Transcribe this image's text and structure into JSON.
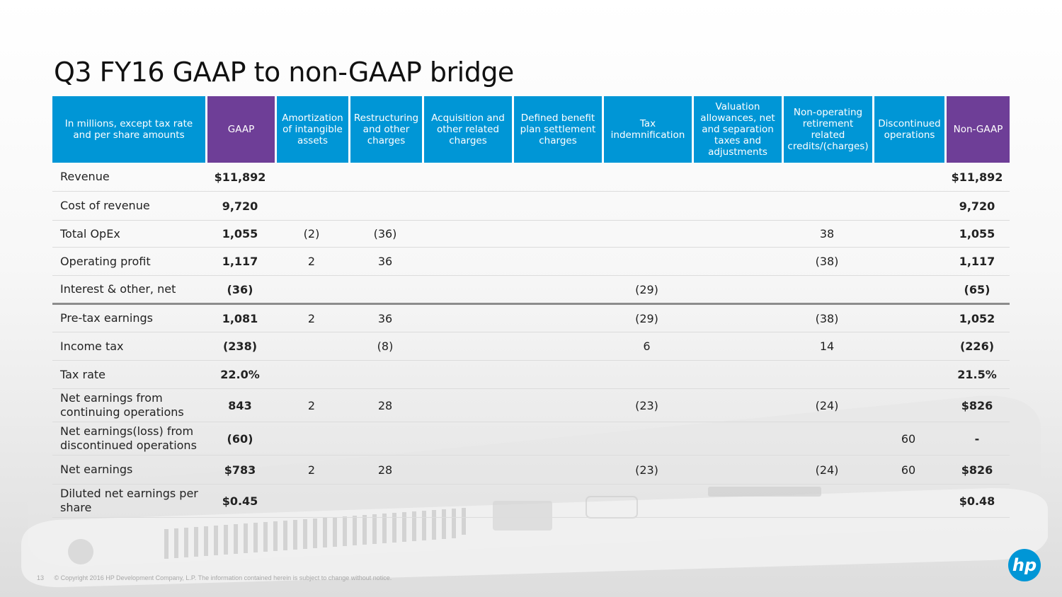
{
  "slide": {
    "title": "Q3 FY16 GAAP to non-GAAP bridge",
    "page_number": "13",
    "copyright": "© Copyright 2016 HP Development Company, L.P. The information contained herein is subject to change without notice.",
    "logo_text": "hp"
  },
  "colors": {
    "blue": "#0096d6",
    "purple": "#6e3e97"
  },
  "table": {
    "headers": [
      "In millions, except tax rate and per share amounts",
      "GAAP",
      "Amortization of intangible assets",
      "Restructuring and other charges",
      "Acquisition and other related charges",
      "Defined benefit plan settlement charges",
      "Tax indemnification",
      "Valuation allowances, net and separation taxes and adjustments",
      "Non-operating retirement related credits/(charges)",
      "Discontinued operations",
      "Non-GAAP"
    ],
    "rows": [
      {
        "label": "Revenue",
        "cells": [
          "$11,892",
          "",
          "",
          "",
          "",
          "",
          "",
          "",
          "",
          "$11,892"
        ]
      },
      {
        "label": "Cost of revenue",
        "cells": [
          "9,720",
          "",
          "",
          "",
          "",
          "",
          "",
          "",
          "",
          "9,720"
        ]
      },
      {
        "label": "Total OpEx",
        "cells": [
          "1,055",
          "(2)",
          "(36)",
          "",
          "",
          "",
          "",
          "38",
          "",
          "1,055"
        ]
      },
      {
        "label": "Operating profit",
        "cells": [
          "1,117",
          "2",
          "36",
          "",
          "",
          "",
          "",
          "(38)",
          "",
          "1,117"
        ]
      },
      {
        "label": "Interest & other, net",
        "cells": [
          "(36)",
          "",
          "",
          "",
          "",
          "(29)",
          "",
          "",
          "",
          "(65)"
        ]
      },
      {
        "label": "Pre-tax earnings",
        "cells": [
          "1,081",
          "2",
          "36",
          "",
          "",
          "(29)",
          "",
          "(38)",
          "",
          "1,052"
        ]
      },
      {
        "label": "Income tax",
        "cells": [
          "(238)",
          "",
          "(8)",
          "",
          "",
          "6",
          "",
          "14",
          "",
          "(226)"
        ]
      },
      {
        "label": "Tax rate",
        "cells": [
          "22.0%",
          "",
          "",
          "",
          "",
          "",
          "",
          "",
          "",
          "21.5%"
        ]
      },
      {
        "label": "Net earnings from continuing operations",
        "cells": [
          "843",
          "2",
          "28",
          "",
          "",
          "(23)",
          "",
          "(24)",
          "",
          "$826"
        ]
      },
      {
        "label": "Net earnings(loss) from discontinued operations",
        "cells": [
          "(60)",
          "",
          "",
          "",
          "",
          "",
          "",
          "",
          "60",
          "-"
        ]
      },
      {
        "label": "Net earnings",
        "cells": [
          "$783",
          "2",
          "28",
          "",
          "",
          "(23)",
          "",
          "(24)",
          "60",
          "$826"
        ]
      },
      {
        "label": "Diluted net earnings per share",
        "cells": [
          "$0.45",
          "",
          "",
          "",
          "",
          "",
          "",
          "",
          "",
          "$0.48"
        ]
      }
    ]
  }
}
